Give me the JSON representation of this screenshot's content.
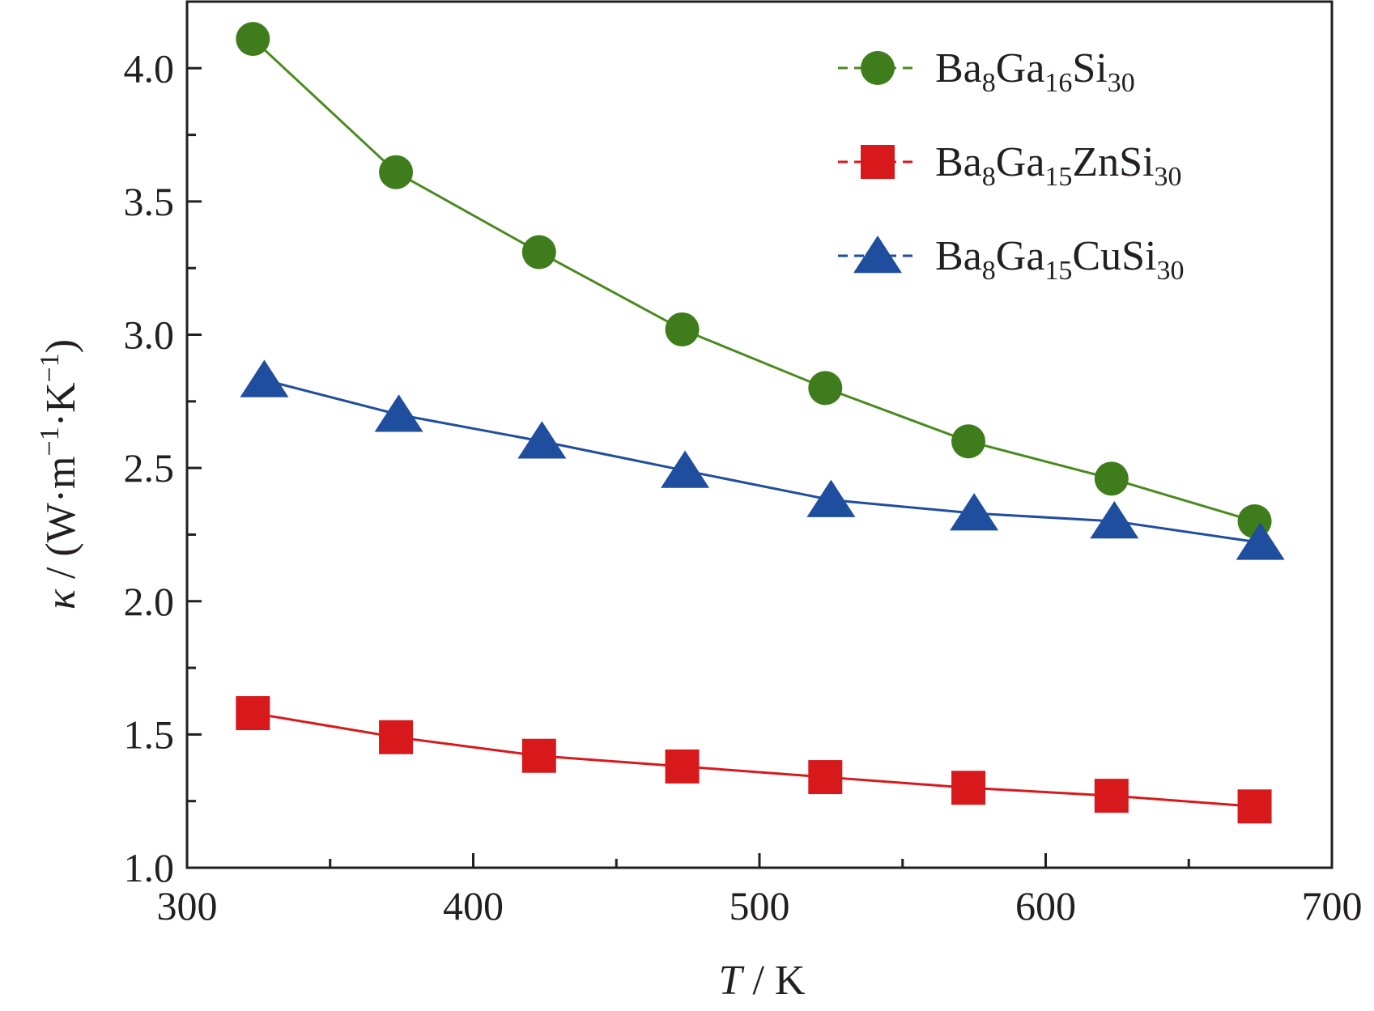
{
  "chart_data": {
    "type": "line",
    "xlabel": {
      "italic": "T",
      "rest": " / K"
    },
    "ylabel": {
      "symbol": "κ",
      "rest": " / (W·m",
      "sup1": "−1",
      "mid": "·K",
      "sup2": "−1",
      "end": ")"
    },
    "xlim": [
      300,
      700
    ],
    "ylim": [
      1.0,
      4.25
    ],
    "xticks": [
      300,
      400,
      500,
      600,
      700
    ],
    "yticks": [
      1.0,
      1.5,
      2.0,
      2.5,
      3.0,
      3.5,
      4.0
    ],
    "xtick_labels": [
      "300",
      "400",
      "500",
      "600",
      "700"
    ],
    "ytick_labels": [
      "1.0",
      "1.5",
      "2.0",
      "2.5",
      "3.0",
      "3.5",
      "4.0"
    ],
    "grid": false,
    "legend_position": "top-right",
    "series": [
      {
        "name": "Ba8Ga16Si30",
        "legend_parts": [
          [
            "Ba",
            false
          ],
          [
            "8",
            true
          ],
          [
            "Ga",
            false
          ],
          [
            "16",
            true
          ],
          [
            "Si",
            false
          ],
          [
            "30",
            true
          ]
        ],
        "marker": "circle",
        "color": "#3f7d1c",
        "line_color": "#4a8a20",
        "x": [
          323,
          373,
          423,
          473,
          523,
          573,
          623,
          673
        ],
        "y": [
          4.11,
          3.61,
          3.31,
          3.02,
          2.8,
          2.6,
          2.46,
          2.3
        ]
      },
      {
        "name": "Ba8Ga15ZnSi30",
        "legend_parts": [
          [
            "Ba",
            false
          ],
          [
            "8",
            true
          ],
          [
            "Ga",
            false
          ],
          [
            "15",
            true
          ],
          [
            "ZnSi",
            false
          ],
          [
            "30",
            true
          ]
        ],
        "marker": "square",
        "color": "#d7191c",
        "line_color": "#d7191c",
        "x": [
          323,
          373,
          423,
          473,
          523,
          573,
          623,
          673
        ],
        "y": [
          1.58,
          1.49,
          1.42,
          1.38,
          1.34,
          1.3,
          1.27,
          1.23
        ]
      },
      {
        "name": "Ba8Ga15CuSi30",
        "legend_parts": [
          [
            "Ba",
            false
          ],
          [
            "8",
            true
          ],
          [
            "Ga",
            false
          ],
          [
            "15",
            true
          ],
          [
            "CuSi",
            false
          ],
          [
            "30",
            true
          ]
        ],
        "marker": "triangle",
        "color": "#1f4e9e",
        "line_color": "#1f4e9e",
        "x": [
          327,
          374,
          424,
          474,
          525,
          575,
          624,
          675
        ],
        "y": [
          2.83,
          2.7,
          2.6,
          2.49,
          2.38,
          2.33,
          2.3,
          2.22
        ]
      }
    ]
  }
}
